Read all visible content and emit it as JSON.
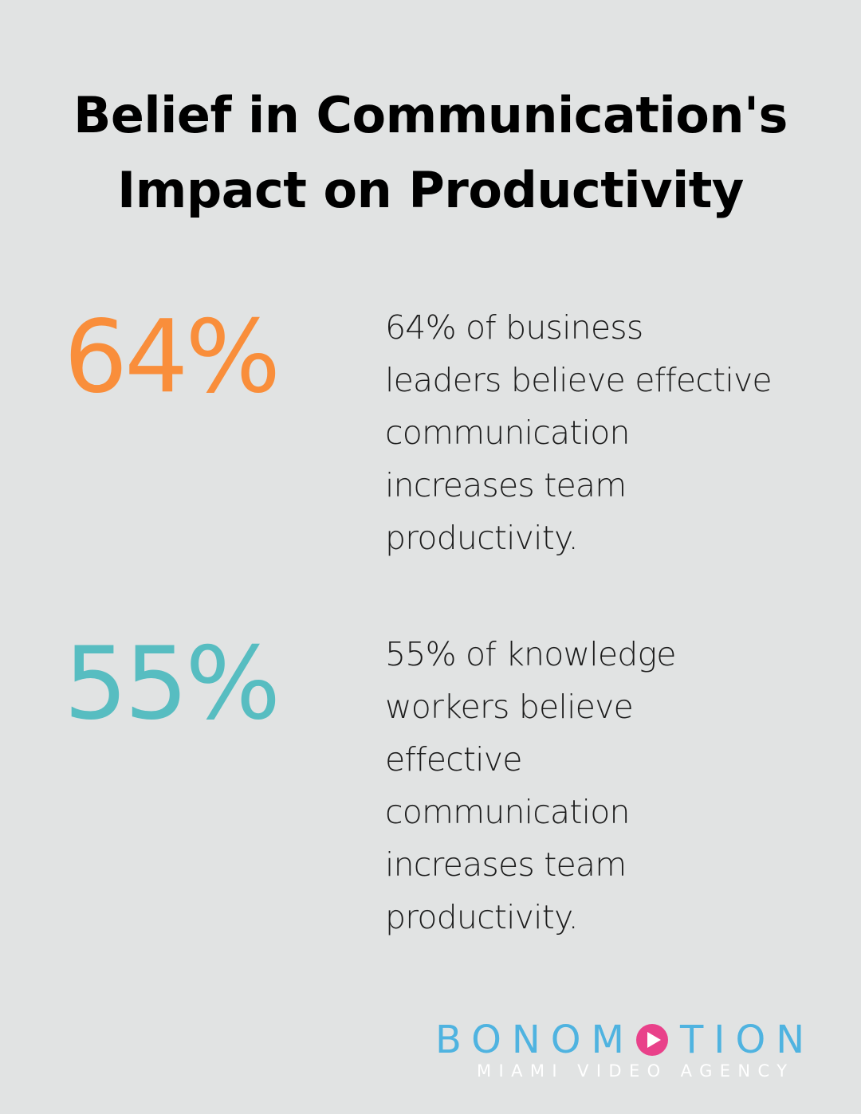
{
  "title": {
    "line1": "Belief in Communication's",
    "line2": "Impact on Productivity"
  },
  "stats": [
    {
      "value": "64%",
      "color": "#f98e3b",
      "description_lines": [
        "64% of business",
        "leaders believe effective",
        "communication",
        "increases team",
        "productivity."
      ]
    },
    {
      "value": "55%",
      "color": "#57bdc1",
      "description_lines": [
        "55% of knowledge",
        "workers believe",
        "effective",
        "communication",
        "increases team",
        "productivity."
      ]
    }
  ],
  "logo": {
    "word_before_icon": "BONOM",
    "icon": "play-circle-icon",
    "word_after_icon": "TION",
    "tagline": "MIAMI VIDEO AGENCY",
    "word_color": "#4fb3e0",
    "icon_color": "#e9418a"
  }
}
